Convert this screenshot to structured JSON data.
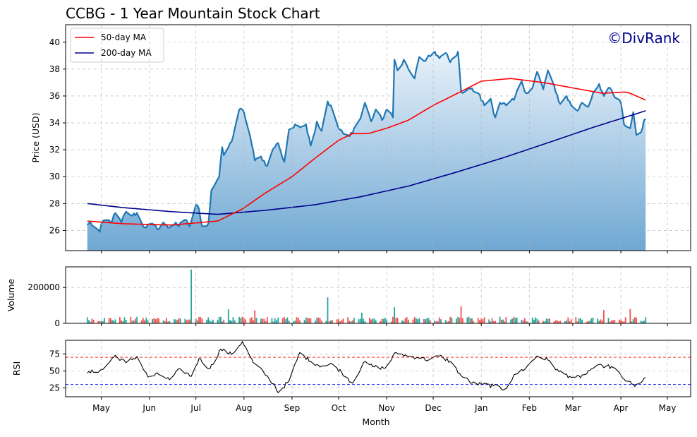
{
  "chart_data": {
    "type": "line",
    "title": "CCBG - 1 Year Mountain Stock Chart",
    "watermark": "©DivRank",
    "xlabel": "Month",
    "x_ticks": [
      "May",
      "Jun",
      "Jul",
      "Aug",
      "Sep",
      "Oct",
      "Nov",
      "Dec",
      "Jan",
      "Feb",
      "Mar",
      "Apr",
      "May"
    ],
    "x_range": [
      "2024-04-08",
      "2025-05-16"
    ],
    "colors": {
      "price": "#1f77b4",
      "ma50": "#ff0000",
      "ma200": "#00008b",
      "fill_top": "#e8f1fa",
      "fill_bottom": "#6fa8d3",
      "vol_up": "#26a69a",
      "vol_down": "#ef5350",
      "rsi_line": "#000000",
      "rsi_over": "#ff0000",
      "rsi_under": "#0000ff",
      "watermark": "#00008b"
    },
    "panels": {
      "price": {
        "ylabel": "Price (USD)",
        "ylim": [
          24.5,
          41.3
        ],
        "yticks": [
          26,
          28,
          30,
          32,
          34,
          36,
          38,
          40
        ],
        "legend_position": "top-left",
        "series": [
          {
            "name": "50-day MA",
            "key": "ma50"
          },
          {
            "name": "200-day MA",
            "key": "ma200"
          }
        ]
      },
      "volume": {
        "ylabel": "Volume",
        "ylim": [
          0,
          315000
        ],
        "yticks": [
          0,
          200000
        ]
      },
      "rsi": {
        "ylabel": "RSI",
        "ylim": [
          12,
          95
        ],
        "yticks": [
          25,
          50,
          75
        ],
        "overbought": 70,
        "oversold": 30
      }
    },
    "price_anchors": [
      [
        "2024-04-22",
        26.4
      ],
      [
        "2024-04-24",
        26.6
      ],
      [
        "2024-04-26",
        26.3
      ],
      [
        "2024-04-30",
        25.9
      ],
      [
        "2024-05-02",
        26.7
      ],
      [
        "2024-05-08",
        26.7
      ],
      [
        "2024-05-10",
        27.3
      ],
      [
        "2024-05-14",
        26.6
      ],
      [
        "2024-05-17",
        27.4
      ],
      [
        "2024-05-21",
        27.1
      ],
      [
        "2024-05-24",
        27.3
      ],
      [
        "2024-05-28",
        26.3
      ],
      [
        "2024-06-04",
        26.4
      ],
      [
        "2024-06-06",
        26.1
      ],
      [
        "2024-06-10",
        26.6
      ],
      [
        "2024-06-13",
        26.2
      ],
      [
        "2024-06-18",
        26.6
      ],
      [
        "2024-06-20",
        26.3
      ],
      [
        "2024-06-24",
        26.8
      ],
      [
        "2024-06-27",
        26.3
      ],
      [
        "2024-07-01",
        27.9
      ],
      [
        "2024-07-03",
        27.6
      ],
      [
        "2024-07-05",
        26.3
      ],
      [
        "2024-07-09",
        26.5
      ],
      [
        "2024-07-11",
        29.0
      ],
      [
        "2024-07-16",
        30.0
      ],
      [
        "2024-07-18",
        32.2
      ],
      [
        "2024-07-19",
        31.6
      ],
      [
        "2024-07-24",
        32.6
      ],
      [
        "2024-07-29",
        35.0
      ],
      [
        "2024-08-01",
        34.8
      ],
      [
        "2024-08-05",
        33.0
      ],
      [
        "2024-08-08",
        31.2
      ],
      [
        "2024-08-12",
        31.5
      ],
      [
        "2024-08-16",
        30.8
      ],
      [
        "2024-08-20",
        32.1
      ],
      [
        "2024-08-23",
        32.5
      ],
      [
        "2024-08-27",
        31.1
      ],
      [
        "2024-08-30",
        33.5
      ],
      [
        "2024-09-04",
        33.8
      ],
      [
        "2024-09-10",
        33.9
      ],
      [
        "2024-09-13",
        32.3
      ],
      [
        "2024-09-17",
        34.1
      ],
      [
        "2024-09-20",
        33.4
      ],
      [
        "2024-09-24",
        35.6
      ],
      [
        "2024-09-27",
        35.0
      ],
      [
        "2024-10-01",
        33.6
      ],
      [
        "2024-10-04",
        33.2
      ],
      [
        "2024-10-08",
        33.0
      ],
      [
        "2024-10-11",
        33.6
      ],
      [
        "2024-10-15",
        34.3
      ],
      [
        "2024-10-18",
        35.5
      ],
      [
        "2024-10-22",
        34.1
      ],
      [
        "2024-10-25",
        35.0
      ],
      [
        "2024-10-29",
        34.2
      ],
      [
        "2024-11-01",
        35.0
      ],
      [
        "2024-11-05",
        34.4
      ],
      [
        "2024-11-06",
        38.7
      ],
      [
        "2024-11-08",
        37.9
      ],
      [
        "2024-11-12",
        38.7
      ],
      [
        "2024-11-15",
        38.0
      ],
      [
        "2024-11-19",
        37.3
      ],
      [
        "2024-11-22",
        38.9
      ],
      [
        "2024-11-26",
        38.6
      ],
      [
        "2024-12-02",
        39.3
      ],
      [
        "2024-12-05",
        38.8
      ],
      [
        "2024-12-09",
        39.2
      ],
      [
        "2024-12-12",
        38.5
      ],
      [
        "2024-12-17",
        39.3
      ],
      [
        "2024-12-19",
        36.3
      ],
      [
        "2024-12-24",
        36.6
      ],
      [
        "2024-12-30",
        36.2
      ],
      [
        "2025-01-03",
        35.3
      ],
      [
        "2025-01-07",
        35.8
      ],
      [
        "2025-01-10",
        34.4
      ],
      [
        "2025-01-13",
        35.5
      ],
      [
        "2025-01-17",
        35.3
      ],
      [
        "2025-01-22",
        35.7
      ],
      [
        "2025-01-27",
        37.1
      ],
      [
        "2025-01-30",
        36.2
      ],
      [
        "2025-02-03",
        36.6
      ],
      [
        "2025-02-06",
        37.8
      ],
      [
        "2025-02-10",
        36.5
      ],
      [
        "2025-02-13",
        37.9
      ],
      [
        "2025-02-18",
        36.3
      ],
      [
        "2025-02-21",
        35.4
      ],
      [
        "2025-02-25",
        36.0
      ],
      [
        "2025-02-28",
        35.3
      ],
      [
        "2025-03-04",
        34.9
      ],
      [
        "2025-03-07",
        35.5
      ],
      [
        "2025-03-11",
        35.2
      ],
      [
        "2025-03-14",
        36.2
      ],
      [
        "2025-03-18",
        36.9
      ],
      [
        "2025-03-21",
        36.0
      ],
      [
        "2025-03-25",
        36.6
      ],
      [
        "2025-03-28",
        35.9
      ],
      [
        "2025-04-01",
        35.5
      ],
      [
        "2025-04-03",
        33.9
      ],
      [
        "2025-04-07",
        33.6
      ],
      [
        "2025-04-09",
        34.8
      ],
      [
        "2025-04-11",
        33.1
      ],
      [
        "2025-04-14",
        33.3
      ],
      [
        "2025-04-16",
        34.2
      ],
      [
        "2025-04-17",
        34.3
      ]
    ],
    "ma50_anchors": [
      [
        "2024-04-22",
        26.7
      ],
      [
        "2024-05-15",
        26.5
      ],
      [
        "2024-06-15",
        26.4
      ],
      [
        "2024-07-05",
        26.6
      ],
      [
        "2024-07-15",
        26.7
      ],
      [
        "2024-07-31",
        27.6
      ],
      [
        "2024-08-15",
        28.8
      ],
      [
        "2024-09-01",
        30.0
      ],
      [
        "2024-09-15",
        31.3
      ],
      [
        "2024-10-01",
        32.7
      ],
      [
        "2024-10-10",
        33.2
      ],
      [
        "2024-10-20",
        33.2
      ],
      [
        "2024-11-01",
        33.6
      ],
      [
        "2024-11-15",
        34.2
      ],
      [
        "2024-12-01",
        35.3
      ],
      [
        "2024-12-15",
        36.1
      ],
      [
        "2025-01-01",
        37.1
      ],
      [
        "2025-01-20",
        37.3
      ],
      [
        "2025-02-10",
        37.0
      ],
      [
        "2025-03-01",
        36.6
      ],
      [
        "2025-03-20",
        36.2
      ],
      [
        "2025-04-05",
        36.3
      ],
      [
        "2025-04-17",
        35.7
      ]
    ],
    "ma200_anchors": [
      [
        "2024-04-22",
        28.0
      ],
      [
        "2024-05-15",
        27.7
      ],
      [
        "2024-06-15",
        27.4
      ],
      [
        "2024-07-15",
        27.2
      ],
      [
        "2024-08-15",
        27.5
      ],
      [
        "2024-09-15",
        27.9
      ],
      [
        "2024-10-15",
        28.5
      ],
      [
        "2024-11-15",
        29.3
      ],
      [
        "2024-12-15",
        30.3
      ],
      [
        "2025-01-15",
        31.4
      ],
      [
        "2025-02-15",
        32.6
      ],
      [
        "2025-03-15",
        33.7
      ],
      [
        "2025-04-17",
        34.9
      ]
    ],
    "rsi_anchors": [
      [
        "2024-04-22",
        47
      ],
      [
        "2024-05-02",
        52
      ],
      [
        "2024-05-10",
        73
      ],
      [
        "2024-05-17",
        62
      ],
      [
        "2024-05-24",
        71
      ],
      [
        "2024-05-31",
        41
      ],
      [
        "2024-06-07",
        45
      ],
      [
        "2024-06-14",
        37
      ],
      [
        "2024-06-21",
        53
      ],
      [
        "2024-06-28",
        42
      ],
      [
        "2024-07-03",
        68
      ],
      [
        "2024-07-10",
        53
      ],
      [
        "2024-07-17",
        82
      ],
      [
        "2024-07-24",
        74
      ],
      [
        "2024-07-31",
        93
      ],
      [
        "2024-08-07",
        62
      ],
      [
        "2024-08-14",
        47
      ],
      [
        "2024-08-21",
        28
      ],
      [
        "2024-08-23",
        18
      ],
      [
        "2024-08-30",
        35
      ],
      [
        "2024-09-06",
        77
      ],
      [
        "2024-09-13",
        64
      ],
      [
        "2024-09-20",
        57
      ],
      [
        "2024-09-27",
        60
      ],
      [
        "2024-10-03",
        48
      ],
      [
        "2024-10-10",
        32
      ],
      [
        "2024-10-17",
        62
      ],
      [
        "2024-10-24",
        56
      ],
      [
        "2024-10-31",
        54
      ],
      [
        "2024-11-07",
        77
      ],
      [
        "2024-11-14",
        72
      ],
      [
        "2024-11-21",
        70
      ],
      [
        "2024-11-28",
        66
      ],
      [
        "2024-12-05",
        72
      ],
      [
        "2024-12-12",
        64
      ],
      [
        "2024-12-19",
        43
      ],
      [
        "2024-12-26",
        32
      ],
      [
        "2025-01-02",
        30
      ],
      [
        "2025-01-09",
        28
      ],
      [
        "2025-01-16",
        23
      ],
      [
        "2025-01-23",
        45
      ],
      [
        "2025-01-30",
        55
      ],
      [
        "2025-02-06",
        72
      ],
      [
        "2025-02-13",
        66
      ],
      [
        "2025-02-20",
        49
      ],
      [
        "2025-02-27",
        42
      ],
      [
        "2025-03-06",
        40
      ],
      [
        "2025-03-13",
        53
      ],
      [
        "2025-03-20",
        58
      ],
      [
        "2025-03-27",
        55
      ],
      [
        "2025-04-03",
        38
      ],
      [
        "2025-04-10",
        27
      ],
      [
        "2025-04-17",
        40
      ]
    ],
    "volume_spikes": [
      [
        "2024-06-28",
        300000
      ],
      [
        "2024-07-22",
        78000
      ],
      [
        "2024-08-08",
        72000
      ],
      [
        "2024-09-24",
        145000
      ],
      [
        "2024-10-16",
        60000
      ],
      [
        "2024-11-06",
        90000
      ],
      [
        "2024-12-19",
        95000
      ],
      [
        "2025-03-21",
        75000
      ],
      [
        "2025-04-07",
        80000
      ]
    ]
  }
}
